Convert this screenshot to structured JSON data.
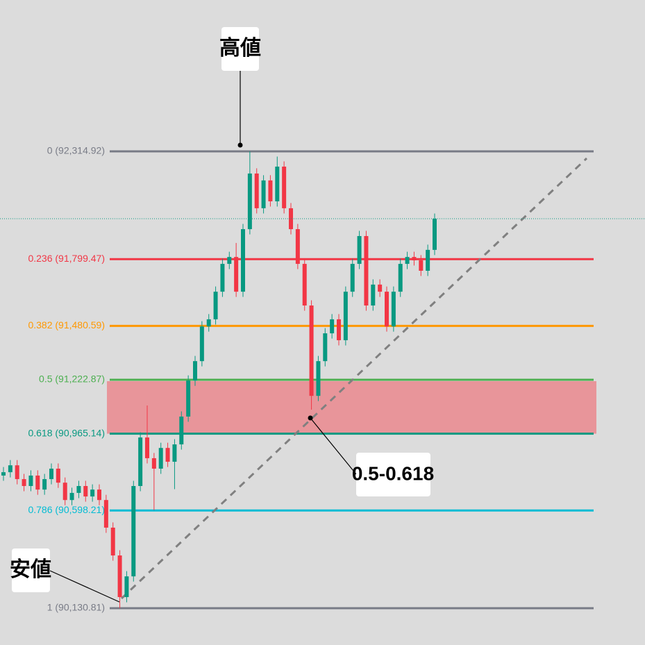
{
  "chart_data": {
    "type": "candlestick",
    "up_color": "#089981",
    "down_color": "#f23645",
    "open": [
      90765,
      90781,
      90814,
      90748,
      90715,
      90765,
      90698,
      90748,
      90798,
      90731,
      90648,
      90682,
      90715,
      90665,
      90698,
      90648,
      90516,
      90383,
      90184,
      90283,
      90715,
      90947,
      90848,
      90798,
      90897,
      90831,
      90914,
      91047,
      91219,
      91312,
      91478,
      91512,
      91644,
      91777,
      91810,
      91644,
      91943,
      92209,
      92043,
      92176,
      92076,
      92242,
      92043,
      91943,
      91777,
      91578,
      91146,
      91312,
      91445,
      91512,
      91412,
      91644,
      91777,
      91910,
      91578,
      91678,
      91644,
      91478,
      91644,
      91777,
      91810,
      91794,
      91744,
      91844
    ],
    "high": [
      90806,
      90839,
      90839,
      90773,
      90790,
      90790,
      90773,
      90823,
      90823,
      90756,
      90707,
      90740,
      90740,
      90723,
      90723,
      90673,
      90541,
      90408,
      90308,
      90740,
      90972,
      91100,
      90873,
      90922,
      90922,
      90939,
      91072,
      91244,
      91337,
      91503,
      91537,
      91669,
      91802,
      91835,
      91877,
      91968,
      92315,
      92234,
      92201,
      92201,
      92290,
      92267,
      92068,
      91968,
      91802,
      91603,
      91337,
      91470,
      91537,
      91537,
      91669,
      91802,
      91935,
      91935,
      91703,
      91703,
      91669,
      91669,
      91802,
      91835,
      91835,
      91819,
      91869,
      92018
    ],
    "low": [
      90740,
      90756,
      90723,
      90690,
      90690,
      90673,
      90673,
      90723,
      90706,
      90623,
      90623,
      90657,
      90640,
      90640,
      90623,
      90491,
      90358,
      90131,
      90159,
      90258,
      90690,
      90823,
      90600,
      90773,
      90806,
      90700,
      90889,
      91022,
      91194,
      91287,
      91453,
      91487,
      91619,
      91752,
      91619,
      91619,
      91918,
      92018,
      92018,
      92051,
      92051,
      92018,
      91918,
      91752,
      91553,
      91080,
      91121,
      91287,
      91420,
      91387,
      91387,
      91619,
      91752,
      91553,
      91553,
      91619,
      91453,
      91453,
      91619,
      91752,
      91769,
      91719,
      91719,
      91819
    ],
    "close": [
      90781,
      90814,
      90748,
      90715,
      90765,
      90698,
      90748,
      90798,
      90731,
      90648,
      90682,
      90715,
      90665,
      90698,
      90648,
      90516,
      90383,
      90184,
      90283,
      90715,
      90947,
      90848,
      90798,
      90897,
      90831,
      90914,
      91047,
      91219,
      91312,
      91478,
      91512,
      91644,
      91777,
      91810,
      91644,
      91943,
      92209,
      92043,
      92176,
      92076,
      92242,
      92043,
      91943,
      91777,
      91578,
      91146,
      91312,
      91445,
      91512,
      91412,
      91644,
      91777,
      91910,
      91578,
      91678,
      91644,
      91478,
      91644,
      91777,
      91810,
      91794,
      91744,
      91844,
      91993
    ],
    "fib_levels": [
      {
        "label": "0 (92,314.92)",
        "value": 92314.92,
        "color": "#787b86"
      },
      {
        "label": "0.236 (91,799.47)",
        "value": 91799.47,
        "color": "#f23645"
      },
      {
        "label": "0.382 (91,480.59)",
        "value": 91480.59,
        "color": "#ff9800"
      },
      {
        "label": "0.5 (91,222.87)",
        "value": 91222.87,
        "color": "#4caf50"
      },
      {
        "label": "0.618 (90,965.14)",
        "value": 90965.14,
        "color": "#089981"
      },
      {
        "label": "0.786 (90,598.21)",
        "value": 90598.21,
        "color": "#00bcd4"
      },
      {
        "label": "1 (90,130.81)",
        "value": 90130.81,
        "color": "#787b86"
      }
    ],
    "zone_color": "#e8959a",
    "annotations": {
      "high": "高値",
      "low": "安値",
      "zone": "0.5-0.618"
    }
  }
}
